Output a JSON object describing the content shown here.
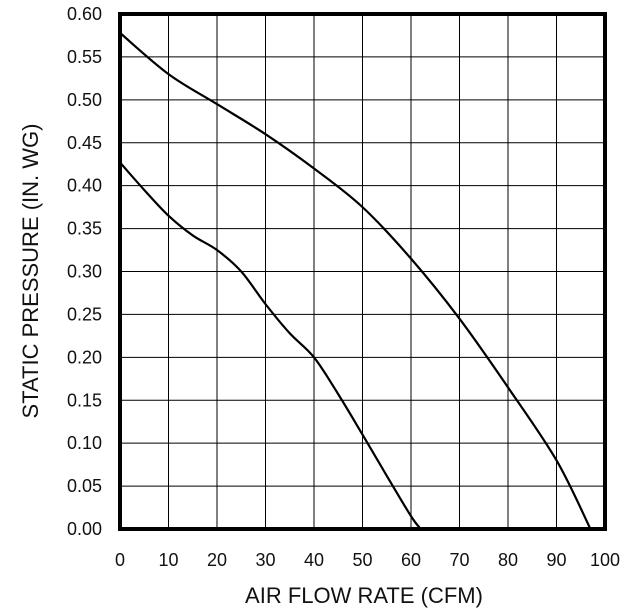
{
  "chart_data": {
    "type": "line",
    "title": "",
    "xlabel": "AIR FLOW RATE (CFM)",
    "ylabel": "STATIC PRESSURE (IN. WG)",
    "xlim": [
      0,
      100
    ],
    "ylim": [
      0,
      0.6
    ],
    "x_ticks": [
      0,
      10,
      20,
      30,
      40,
      50,
      60,
      70,
      80,
      90,
      100
    ],
    "x_tick_labels": [
      "0",
      "10",
      "20",
      "30",
      "40",
      "50",
      "60",
      "70",
      "80",
      "90",
      "100"
    ],
    "y_ticks": [
      0,
      0.05,
      0.1,
      0.15,
      0.2,
      0.25,
      0.3,
      0.35,
      0.4,
      0.45,
      0.5,
      0.55,
      0.6
    ],
    "y_tick_labels": [
      "0.00",
      "0.05",
      "0.10",
      "0.15",
      "0.20",
      "0.25",
      "0.30",
      "0.35",
      "0.40",
      "0.45",
      "0.50",
      "0.55",
      "0.60"
    ],
    "grid": true,
    "legend": "none",
    "line_color": "#000000",
    "series": [
      {
        "x": [
          0,
          10,
          20,
          30,
          40,
          50,
          60,
          70,
          80,
          90,
          97
        ],
        "y": [
          0.578,
          0.53,
          0.495,
          0.46,
          0.42,
          0.375,
          0.315,
          0.245,
          0.165,
          0.08,
          0.0
        ]
      },
      {
        "x": [
          0,
          5,
          10,
          15,
          20,
          25,
          30,
          35,
          40,
          45,
          50,
          55,
          60,
          62
        ],
        "y": [
          0.427,
          0.395,
          0.365,
          0.342,
          0.325,
          0.3,
          0.262,
          0.228,
          0.2,
          0.157,
          0.11,
          0.062,
          0.015,
          0.0
        ]
      }
    ]
  }
}
